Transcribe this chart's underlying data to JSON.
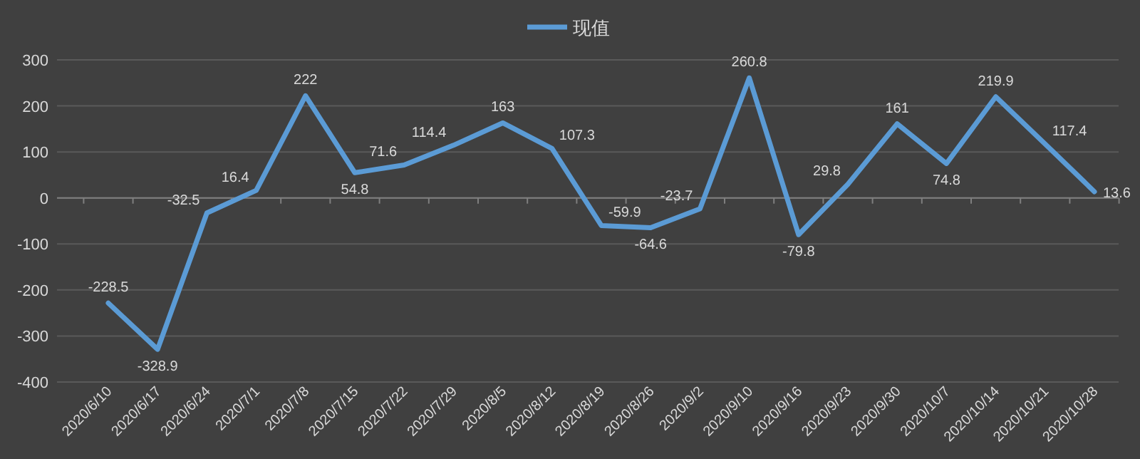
{
  "chart_data": {
    "type": "line",
    "categories": [
      "2020/6/10",
      "2020/6/17",
      "2020/6/24",
      "2020/7/1",
      "2020/7/8",
      "2020/7/15",
      "2020/7/22",
      "2020/7/29",
      "2020/8/5",
      "2020/8/12",
      "2020/8/19",
      "2020/8/26",
      "2020/9/2",
      "2020/9/10",
      "2020/9/16",
      "2020/9/23",
      "2020/9/30",
      "2020/10/7",
      "2020/10/14",
      "2020/10/21",
      "2020/10/28"
    ],
    "series": [
      {
        "name": "现值",
        "color": "#5b9bd5",
        "values": [
          -228.5,
          -328.9,
          -32.5,
          16.4,
          222,
          54.8,
          71.6,
          114.4,
          163,
          107.3,
          -59.9,
          -64.6,
          -23.7,
          260.8,
          -79.8,
          29.8,
          161,
          74.8,
          219.9,
          117.4,
          13.6
        ]
      }
    ],
    "ylim": [
      -400,
      300
    ],
    "yticks": [
      -400,
      -300,
      -200,
      -100,
      0,
      100,
      200,
      300
    ],
    "grid": "y",
    "legend": "top",
    "data_labels": true,
    "marker": "none",
    "line_style": "solid"
  }
}
